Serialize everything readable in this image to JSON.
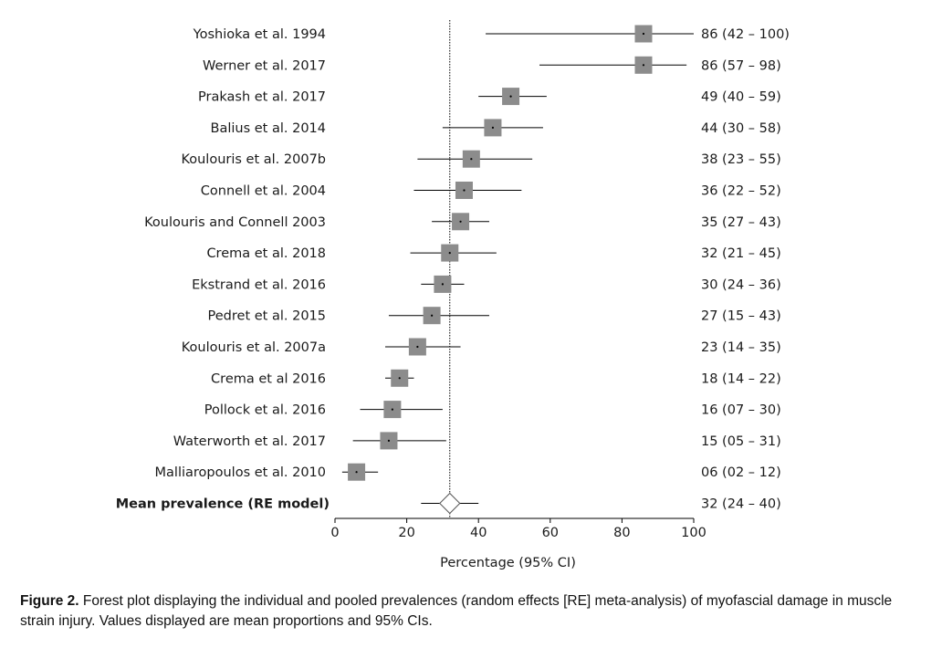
{
  "chart_data": {
    "type": "forest",
    "xlabel": "Percentage (95% CI)",
    "xlim": [
      0,
      100
    ],
    "xticks": [
      0,
      20,
      40,
      60,
      80,
      100
    ],
    "reference_line": 32,
    "studies": [
      {
        "label": "Yoshioka et al. 1994",
        "estimate": 86,
        "lower": 42,
        "upper": 100,
        "ci_text": "86 (42 – 100)"
      },
      {
        "label": "Werner et al. 2017",
        "estimate": 86,
        "lower": 57,
        "upper": 98,
        "ci_text": "86 (57 – 98)"
      },
      {
        "label": "Prakash et al. 2017",
        "estimate": 49,
        "lower": 40,
        "upper": 59,
        "ci_text": "49 (40 – 59)"
      },
      {
        "label": "Balius et al. 2014",
        "estimate": 44,
        "lower": 30,
        "upper": 58,
        "ci_text": "44 (30 – 58)"
      },
      {
        "label": "Koulouris et al. 2007b",
        "estimate": 38,
        "lower": 23,
        "upper": 55,
        "ci_text": "38 (23 – 55)"
      },
      {
        "label": "Connell et al. 2004",
        "estimate": 36,
        "lower": 22,
        "upper": 52,
        "ci_text": "36 (22 – 52)"
      },
      {
        "label": "Koulouris and Connell 2003",
        "estimate": 35,
        "lower": 27,
        "upper": 43,
        "ci_text": "35 (27 – 43)"
      },
      {
        "label": "Crema et al. 2018",
        "estimate": 32,
        "lower": 21,
        "upper": 45,
        "ci_text": "32 (21 – 45)"
      },
      {
        "label": "Ekstrand et al. 2016",
        "estimate": 30,
        "lower": 24,
        "upper": 36,
        "ci_text": "30 (24 – 36)"
      },
      {
        "label": "Pedret et al. 2015",
        "estimate": 27,
        "lower": 15,
        "upper": 43,
        "ci_text": "27 (15 – 43)"
      },
      {
        "label": "Koulouris et al. 2007a",
        "estimate": 23,
        "lower": 14,
        "upper": 35,
        "ci_text": "23 (14 – 35)"
      },
      {
        "label": "Crema et al 2016",
        "estimate": 18,
        "lower": 14,
        "upper": 22,
        "ci_text": "18 (14 – 22)"
      },
      {
        "label": "Pollock et al. 2016",
        "estimate": 16,
        "lower": 7,
        "upper": 30,
        "ci_text": "16 (07 – 30)"
      },
      {
        "label": "Waterworth et al. 2017",
        "estimate": 15,
        "lower": 5,
        "upper": 31,
        "ci_text": "15 (05 – 31)"
      },
      {
        "label": "Malliaropoulos et al. 2010",
        "estimate": 6,
        "lower": 2,
        "upper": 12,
        "ci_text": "06 (02 – 12)"
      }
    ],
    "pooled": {
      "label": "Mean prevalence (RE model)",
      "estimate": 32,
      "lower": 24,
      "upper": 40,
      "ci_text": "32 (24 – 40)"
    }
  },
  "caption": {
    "figure_label": "Figure 2.",
    "text": " Forest plot displaying the individual and pooled prevalences (random effects [RE] meta-analysis) of myofascial damage in muscle strain injury. Values displayed are mean proportions and 95% CIs."
  },
  "colors": {
    "marker_fill": "#8c8c8c",
    "line": "#000000",
    "text": "#1a1a1a"
  }
}
